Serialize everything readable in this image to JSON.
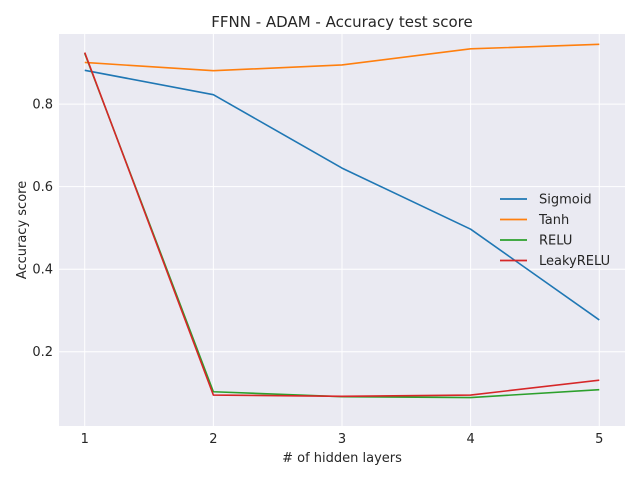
{
  "chart_data": {
    "type": "line",
    "title": "FFNN - ADAM - Accuracy test score",
    "xlabel": "# of hidden layers",
    "ylabel": "Accuracy score",
    "x": [
      1,
      2,
      3,
      4,
      5
    ],
    "xlim": [
      0.8,
      5.2
    ],
    "ylim": [
      0.02,
      0.97
    ],
    "xticks": [
      1,
      2,
      3,
      4,
      5
    ],
    "yticks": [
      0.2,
      0.4,
      0.6,
      0.8
    ],
    "grid": true,
    "background": "#eaeaf2",
    "legend": "center-right",
    "series": [
      {
        "name": "Sigmoid",
        "color": "#1f77b4",
        "values": [
          0.882,
          0.823,
          0.645,
          0.497,
          0.277
        ]
      },
      {
        "name": "Tanh",
        "color": "#ff7f0e",
        "values": [
          0.901,
          0.881,
          0.895,
          0.934,
          0.945
        ]
      },
      {
        "name": "RELU",
        "color": "#2ca02c",
        "values": [
          0.923,
          0.103,
          0.091,
          0.089,
          0.108
        ]
      },
      {
        "name": "LeakyRELU",
        "color": "#d62728",
        "values": [
          0.925,
          0.095,
          0.092,
          0.095,
          0.131
        ]
      }
    ]
  }
}
